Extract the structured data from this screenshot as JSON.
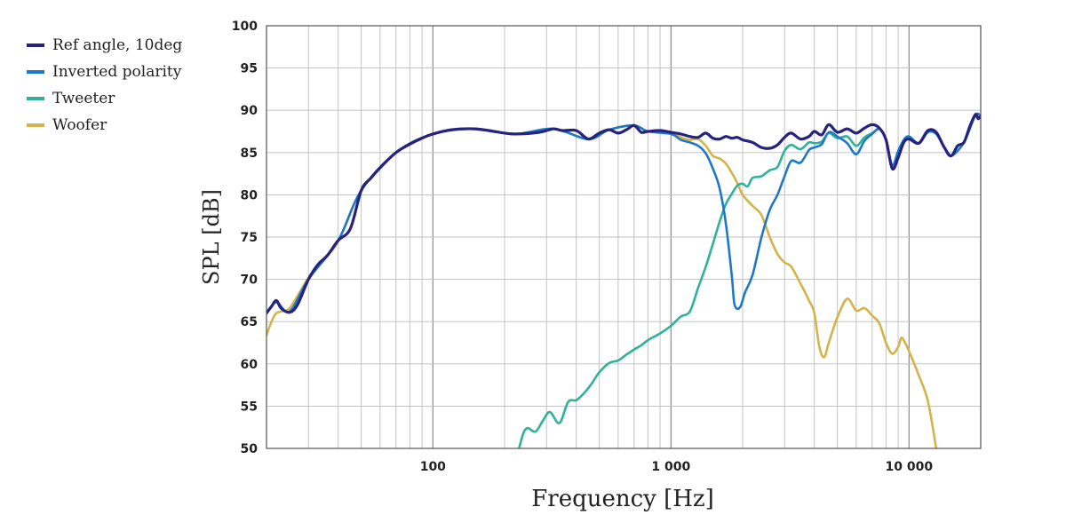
{
  "chart_data": {
    "type": "line",
    "xlabel": "Frequency [Hz]",
    "ylabel": "SPL [dB]",
    "xscale": "log",
    "xlim": [
      20,
      20000
    ],
    "ylim": [
      50,
      100
    ],
    "grid": true,
    "legend_position": "top-left",
    "y_ticks": [
      "50",
      "55",
      "60",
      "65",
      "70",
      "75",
      "80",
      "85",
      "90",
      "95",
      "100"
    ],
    "x_ticks": [
      {
        "value": 100,
        "label": "100"
      },
      {
        "value": 1000,
        "label": "1 000"
      },
      {
        "value": 10000,
        "label": "10 000"
      }
    ],
    "series": [
      {
        "name": "Ref angle, 10deg",
        "color": "#26237f",
        "points": [
          [
            20,
            66
          ],
          [
            21,
            66.8
          ],
          [
            22,
            67.5
          ],
          [
            23,
            66.6
          ],
          [
            25,
            66.1
          ],
          [
            27,
            67
          ],
          [
            30,
            70
          ],
          [
            33,
            71.8
          ],
          [
            36,
            72.8
          ],
          [
            40,
            74.6
          ],
          [
            45,
            76
          ],
          [
            50,
            80.5
          ],
          [
            55,
            82
          ],
          [
            60,
            83.2
          ],
          [
            70,
            85
          ],
          [
            80,
            86
          ],
          [
            90,
            86.7
          ],
          [
            100,
            87.2
          ],
          [
            120,
            87.7
          ],
          [
            150,
            87.8
          ],
          [
            180,
            87.5
          ],
          [
            220,
            87.2
          ],
          [
            280,
            87.4
          ],
          [
            320,
            87.8
          ],
          [
            350,
            87.6
          ],
          [
            400,
            87.6
          ],
          [
            450,
            86.6
          ],
          [
            500,
            87.3
          ],
          [
            550,
            87.7
          ],
          [
            600,
            87.3
          ],
          [
            650,
            87.7
          ],
          [
            700,
            88.2
          ],
          [
            750,
            87.4
          ],
          [
            800,
            87.5
          ],
          [
            900,
            87.6
          ],
          [
            1000,
            87.4
          ],
          [
            1100,
            87.2
          ],
          [
            1200,
            86.9
          ],
          [
            1300,
            86.8
          ],
          [
            1400,
            87.3
          ],
          [
            1500,
            86.7
          ],
          [
            1600,
            86.6
          ],
          [
            1700,
            86.9
          ],
          [
            1800,
            86.7
          ],
          [
            1900,
            86.8
          ],
          [
            2000,
            86.5
          ],
          [
            2200,
            86.2
          ],
          [
            2400,
            85.6
          ],
          [
            2600,
            85.5
          ],
          [
            2800,
            85.9
          ],
          [
            3000,
            86.8
          ],
          [
            3200,
            87.3
          ],
          [
            3500,
            86.6
          ],
          [
            3800,
            86.9
          ],
          [
            4000,
            87.5
          ],
          [
            4300,
            87.1
          ],
          [
            4600,
            88.3
          ],
          [
            5000,
            87.4
          ],
          [
            5500,
            87.8
          ],
          [
            6000,
            87.3
          ],
          [
            6500,
            87.9
          ],
          [
            7000,
            88.3
          ],
          [
            7500,
            87.9
          ],
          [
            8000,
            86.5
          ],
          [
            8500,
            83.1
          ],
          [
            9000,
            84.4
          ],
          [
            9500,
            86.2
          ],
          [
            10000,
            86.6
          ],
          [
            11000,
            86.1
          ],
          [
            12000,
            87.6
          ],
          [
            13000,
            87.4
          ],
          [
            14000,
            85.7
          ],
          [
            15000,
            84.6
          ],
          [
            16000,
            85.8
          ],
          [
            17000,
            86.2
          ],
          [
            18000,
            88.1
          ],
          [
            19000,
            89.5
          ],
          [
            19500,
            89
          ],
          [
            20000,
            89.3
          ]
        ]
      },
      {
        "name": "Inverted polarity",
        "color": "#1e78c8",
        "points": [
          [
            20,
            66
          ],
          [
            22,
            67.3
          ],
          [
            25,
            66.2
          ],
          [
            30,
            70
          ],
          [
            40,
            74.6
          ],
          [
            50,
            80.5
          ],
          [
            70,
            85
          ],
          [
            100,
            87.2
          ],
          [
            150,
            87.8
          ],
          [
            220,
            87.2
          ],
          [
            320,
            87.8
          ],
          [
            450,
            86.6
          ],
          [
            550,
            87.7
          ],
          [
            700,
            88.2
          ],
          [
            800,
            87.5
          ],
          [
            1000,
            87.2
          ],
          [
            1100,
            86.5
          ],
          [
            1200,
            86.2
          ],
          [
            1300,
            85.8
          ],
          [
            1400,
            84.9
          ],
          [
            1500,
            83.1
          ],
          [
            1600,
            80.8
          ],
          [
            1700,
            76.6
          ],
          [
            1800,
            70.5
          ],
          [
            1850,
            67
          ],
          [
            1950,
            66.7
          ],
          [
            2050,
            68.5
          ],
          [
            2200,
            70.5
          ],
          [
            2400,
            75
          ],
          [
            2600,
            78.2
          ],
          [
            2800,
            80
          ],
          [
            3000,
            82.2
          ],
          [
            3200,
            84
          ],
          [
            3500,
            83.8
          ],
          [
            3800,
            85.3
          ],
          [
            4000,
            85.6
          ],
          [
            4300,
            86
          ],
          [
            4600,
            87.4
          ],
          [
            5000,
            86.9
          ],
          [
            5500,
            86.1
          ],
          [
            6000,
            84.8
          ],
          [
            6500,
            86.4
          ],
          [
            7000,
            87.2
          ],
          [
            7500,
            87.8
          ],
          [
            8000,
            86.5
          ],
          [
            8500,
            83.5
          ],
          [
            9000,
            85.2
          ],
          [
            9500,
            86.5
          ],
          [
            10000,
            86.9
          ],
          [
            11000,
            86.1
          ],
          [
            12000,
            87.4
          ],
          [
            13000,
            87.2
          ],
          [
            14000,
            85.7
          ],
          [
            15000,
            84.6
          ],
          [
            17000,
            86.2
          ],
          [
            19000,
            89.4
          ],
          [
            20000,
            89.3
          ]
        ]
      },
      {
        "name": "Tweeter",
        "color": "#2eb39a",
        "points": [
          [
            230,
            50
          ],
          [
            240,
            51.8
          ],
          [
            250,
            52.4
          ],
          [
            270,
            52
          ],
          [
            290,
            53.3
          ],
          [
            310,
            54.3
          ],
          [
            340,
            53
          ],
          [
            370,
            55.5
          ],
          [
            400,
            55.7
          ],
          [
            430,
            56.5
          ],
          [
            460,
            57.5
          ],
          [
            500,
            59
          ],
          [
            550,
            60.1
          ],
          [
            600,
            60.4
          ],
          [
            650,
            61.1
          ],
          [
            700,
            61.7
          ],
          [
            750,
            62.2
          ],
          [
            800,
            62.8
          ],
          [
            900,
            63.6
          ],
          [
            1000,
            64.5
          ],
          [
            1100,
            65.6
          ],
          [
            1200,
            66.2
          ],
          [
            1300,
            69
          ],
          [
            1400,
            71.5
          ],
          [
            1500,
            74.2
          ],
          [
            1600,
            76.8
          ],
          [
            1700,
            78.9
          ],
          [
            1800,
            80.1
          ],
          [
            1900,
            81.1
          ],
          [
            2000,
            81.3
          ],
          [
            2100,
            81
          ],
          [
            2200,
            82
          ],
          [
            2400,
            82.2
          ],
          [
            2600,
            82.9
          ],
          [
            2800,
            83.3
          ],
          [
            3000,
            85.2
          ],
          [
            3200,
            85.9
          ],
          [
            3500,
            85.4
          ],
          [
            3800,
            86.2
          ],
          [
            4000,
            86.1
          ],
          [
            4300,
            86.3
          ],
          [
            4600,
            87.3
          ],
          [
            5000,
            86.7
          ],
          [
            5500,
            86.9
          ],
          [
            6000,
            85.8
          ],
          [
            6500,
            86.8
          ],
          [
            7000,
            87.3
          ],
          [
            7500,
            87.9
          ]
        ]
      },
      {
        "name": "Woofer",
        "color": "#d4b44a",
        "points": [
          [
            20,
            63.4
          ],
          [
            21,
            65
          ],
          [
            22,
            66
          ],
          [
            24,
            66.3
          ],
          [
            25,
            66.6
          ],
          [
            27,
            68
          ],
          [
            30,
            70.2
          ],
          [
            35,
            72.5
          ],
          [
            40,
            74.5
          ],
          [
            50,
            80.5
          ],
          [
            70,
            85
          ],
          [
            100,
            87.2
          ],
          [
            150,
            87.8
          ],
          [
            220,
            87.2
          ],
          [
            320,
            87.8
          ],
          [
            450,
            86.6
          ],
          [
            550,
            87.7
          ],
          [
            700,
            88.2
          ],
          [
            800,
            87.5
          ],
          [
            1000,
            87.4
          ],
          [
            1100,
            86.8
          ],
          [
            1200,
            86.5
          ],
          [
            1300,
            86.6
          ],
          [
            1400,
            85.8
          ],
          [
            1500,
            84.6
          ],
          [
            1600,
            84.3
          ],
          [
            1700,
            83.7
          ],
          [
            1800,
            82.6
          ],
          [
            1900,
            81.4
          ],
          [
            2000,
            80
          ],
          [
            2200,
            78.7
          ],
          [
            2400,
            77.6
          ],
          [
            2600,
            75
          ],
          [
            2800,
            73
          ],
          [
            3000,
            72
          ],
          [
            3200,
            71.5
          ],
          [
            3500,
            69.5
          ],
          [
            3800,
            67.5
          ],
          [
            4000,
            66
          ],
          [
            4200,
            62
          ],
          [
            4400,
            60.8
          ],
          [
            4600,
            62.5
          ],
          [
            5000,
            65.5
          ],
          [
            5500,
            67.7
          ],
          [
            6000,
            66.3
          ],
          [
            6500,
            66.6
          ],
          [
            7000,
            65.7
          ],
          [
            7500,
            64.8
          ],
          [
            8000,
            62.5
          ],
          [
            8500,
            61.2
          ],
          [
            9000,
            62
          ],
          [
            9300,
            63.1
          ],
          [
            9700,
            62.3
          ],
          [
            10000,
            61.5
          ],
          [
            11000,
            58.6
          ],
          [
            12000,
            55.6
          ],
          [
            13000,
            50
          ]
        ]
      }
    ]
  }
}
